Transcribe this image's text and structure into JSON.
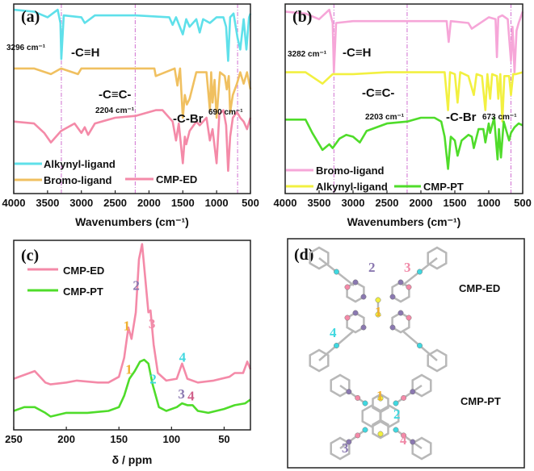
{
  "colors": {
    "cyan": "#5fe0ea",
    "orange": "#f0c060",
    "pink": "#f48aa8",
    "lightpink": "#f6a6d8",
    "yellow": "#f2f040",
    "green": "#4fdc2a",
    "purple": "#8a78b0",
    "guide": "#d070d0"
  },
  "chart_data": [
    {
      "panel_label": "(a)",
      "type": "line",
      "xlabel": "Wavenumbers (cm⁻¹)",
      "xlim": [
        4000,
        500
      ],
      "xticks": [
        4000,
        3500,
        3000,
        2500,
        2000,
        1500,
        1000,
        500
      ],
      "ylim": [
        0,
        100
      ],
      "guides": [
        3296,
        2204,
        690
      ],
      "annotations": [
        "3296 cm⁻¹",
        "-C≡H",
        "-C≡C-",
        "2204 cm⁻¹",
        "-C-Br",
        "690 cm⁻¹"
      ],
      "series": [
        {
          "name": "Alkynyl-ligand",
          "color": "#5fe0ea",
          "x": [
            4000,
            3700,
            3500,
            3350,
            3310,
            3296,
            3260,
            3000,
            2950,
            2800,
            2200,
            1700,
            1650,
            1600,
            1500,
            1450,
            1400,
            1300,
            1250,
            1200,
            1100,
            1000,
            900,
            860,
            830,
            800,
            750,
            690,
            650,
            600,
            560,
            520,
            500
          ],
          "y": [
            97,
            96,
            93,
            97,
            90,
            71,
            94,
            93,
            90,
            94,
            94,
            93,
            89,
            93,
            84,
            92,
            88,
            92,
            85,
            92,
            90,
            93,
            93,
            88,
            70,
            93,
            95,
            82,
            76,
            92,
            76,
            93,
            95
          ]
        },
        {
          "name": "Bromo-ligand",
          "color": "#f0c060",
          "x": [
            4000,
            3700,
            3450,
            3300,
            3050,
            3000,
            2500,
            1920,
            1900,
            1620,
            1580,
            1540,
            1500,
            1470,
            1440,
            1400,
            1300,
            1150,
            1100,
            1080,
            1060,
            1030,
            1000,
            950,
            880,
            850,
            820,
            800,
            760,
            700,
            650,
            600,
            550,
            500
          ],
          "y": [
            66,
            66,
            63,
            66,
            63,
            66,
            66,
            66,
            62,
            66,
            57,
            66,
            40,
            52,
            47,
            50,
            64,
            64,
            44,
            64,
            48,
            60,
            40,
            64,
            62,
            55,
            62,
            43,
            52,
            58,
            64,
            58,
            64,
            55
          ]
        },
        {
          "name": "CMP-ED",
          "color": "#f48aa8",
          "x": [
            4000,
            3700,
            3550,
            3450,
            3300,
            3100,
            3000,
            2950,
            2900,
            2800,
            2500,
            2200,
            1900,
            1800,
            1650,
            1600,
            1560,
            1500,
            1470,
            1450,
            1400,
            1300,
            1250,
            1150,
            1100,
            1060,
            1000,
            960,
            900,
            860,
            830,
            800,
            760,
            700,
            650,
            600,
            550,
            500
          ],
          "y": [
            38,
            37,
            32,
            27,
            33,
            37,
            32,
            35,
            31,
            37,
            40,
            41,
            44,
            44,
            38,
            28,
            37,
            16,
            30,
            26,
            33,
            38,
            36,
            40,
            28,
            34,
            16,
            42,
            44,
            36,
            12,
            30,
            40,
            43,
            40,
            38,
            34,
            40
          ]
        }
      ]
    },
    {
      "panel_label": "(b)",
      "type": "line",
      "xlabel": "Wavenumbers (cm⁻¹)",
      "xlim": [
        4000,
        500
      ],
      "xticks": [
        4000,
        3500,
        3000,
        2500,
        2000,
        1500,
        1000,
        500
      ],
      "ylim": [
        0,
        100
      ],
      "guides": [
        3282,
        2203,
        673
      ],
      "annotations": [
        "3282 cm⁻¹",
        "-C≡H",
        "-C≡C-",
        "2203 cm⁻¹",
        "-C-Br",
        "673 cm⁻¹"
      ],
      "series": [
        {
          "name": "Bromo-ligand",
          "color": "#f6a6d8",
          "x": [
            4000,
            3700,
            3500,
            3350,
            3300,
            3282,
            3250,
            3000,
            2000,
            1620,
            1590,
            1560,
            1300,
            1250,
            1000,
            900,
            880,
            860,
            800,
            720,
            690,
            673,
            650,
            620,
            590,
            560,
            500
          ],
          "y": [
            96,
            95,
            92,
            97,
            90,
            64,
            90,
            91,
            91,
            91,
            80,
            91,
            90,
            87,
            93,
            92,
            72,
            93,
            94,
            92,
            78,
            70,
            88,
            64,
            86,
            90,
            96
          ],
          "colors_note": ""
        },
        {
          "name": "Alkynyl-ligand",
          "color": "#f2f040",
          "x": [
            4000,
            3700,
            3450,
            3300,
            3000,
            2500,
            2000,
            1650,
            1600,
            1570,
            1500,
            1460,
            1420,
            1300,
            1220,
            1180,
            1100,
            1050,
            1020,
            980,
            950,
            880,
            860,
            830,
            800,
            770,
            700,
            673,
            640,
            600,
            500
          ],
          "y": [
            64,
            64,
            58,
            63,
            63,
            64,
            64,
            64,
            44,
            64,
            63,
            48,
            64,
            62,
            52,
            63,
            62,
            44,
            63,
            50,
            63,
            62,
            50,
            63,
            38,
            62,
            62,
            52,
            63,
            63,
            64
          ],
          "colors_note": ""
        },
        {
          "name": "CMP-PT",
          "color": "#4fdc2a",
          "x": [
            4000,
            3700,
            3600,
            3450,
            3350,
            3300,
            3200,
            3100,
            3000,
            2900,
            2800,
            2500,
            2200,
            2000,
            1800,
            1700,
            1650,
            1600,
            1560,
            1500,
            1460,
            1400,
            1300,
            1250,
            1220,
            1150,
            1080,
            1050,
            1000,
            980,
            920,
            870,
            850,
            820,
            780,
            700,
            673,
            620,
            560,
            500
          ],
          "y": [
            39,
            39,
            32,
            23,
            26,
            24,
            29,
            31,
            30,
            27,
            33,
            37,
            38,
            40,
            40,
            38,
            30,
            13,
            30,
            28,
            20,
            28,
            31,
            30,
            24,
            34,
            34,
            27,
            37,
            32,
            40,
            18,
            34,
            19,
            38,
            28,
            32,
            35,
            37,
            36
          ]
        }
      ]
    },
    {
      "panel_label": "(c)",
      "type": "line",
      "xlabel": "δ / ppm",
      "xlim": [
        250,
        25
      ],
      "xticks": [
        250,
        200,
        150,
        100,
        50
      ],
      "ylim": [
        0,
        100
      ],
      "series": [
        {
          "name": "CMP-ED",
          "color": "#f48aa8",
          "x": [
            250,
            240,
            230,
            220,
            215,
            200,
            190,
            170,
            160,
            150,
            145,
            141,
            138,
            134,
            131,
            128,
            125,
            122,
            120,
            117,
            113,
            105,
            95,
            90,
            85,
            75,
            60,
            45,
            40,
            32,
            28,
            25
          ],
          "y": [
            27,
            29,
            31,
            25,
            24,
            25,
            26,
            25,
            25,
            28,
            38,
            54,
            48,
            62,
            90,
            98,
            80,
            62,
            63,
            45,
            30,
            26,
            27,
            35,
            27,
            25,
            26,
            28,
            30,
            30,
            36,
            32
          ],
          "peak_labels": [
            {
              "text": "1",
              "ppm": 142,
              "color": "#f0b030"
            },
            {
              "text": "2",
              "ppm": 133,
              "color": "#8a78b0"
            },
            {
              "text": "3",
              "ppm": 118,
              "color": "#f08aa8"
            },
            {
              "text": "4",
              "ppm": 89,
              "color": "#40d8e0"
            }
          ]
        },
        {
          "name": "CMP-PT",
          "color": "#4fdc2a",
          "x": [
            250,
            240,
            230,
            220,
            215,
            200,
            180,
            160,
            150,
            145,
            140,
            135,
            130,
            126,
            122,
            118,
            112,
            105,
            95,
            90,
            85,
            80,
            75,
            65,
            50,
            40,
            30,
            25
          ],
          "y": [
            10,
            12,
            12,
            9,
            7,
            9,
            9,
            10,
            12,
            18,
            27,
            31,
            36,
            37,
            35,
            24,
            12,
            10,
            12,
            14,
            13,
            13,
            10,
            9,
            11,
            13,
            14,
            16
          ],
          "peak_labels": [
            {
              "text": "1",
              "ppm": 140,
              "color": "#f0b030"
            },
            {
              "text": "2",
              "ppm": 117,
              "color": "#40d8e0"
            },
            {
              "text": "3",
              "ppm": 90,
              "color": "#8a78b0"
            },
            {
              "text": "4",
              "ppm": 81,
              "color": "#d0608a"
            }
          ]
        }
      ]
    }
  ],
  "panel_d": {
    "panel_label": "(d)",
    "top_name": "CMP-ED",
    "bottom_name": "CMP-PT",
    "top_numbers": [
      "2",
      "3",
      "1",
      "4"
    ],
    "bottom_numbers": [
      "1",
      "2",
      "3",
      "4"
    ]
  }
}
